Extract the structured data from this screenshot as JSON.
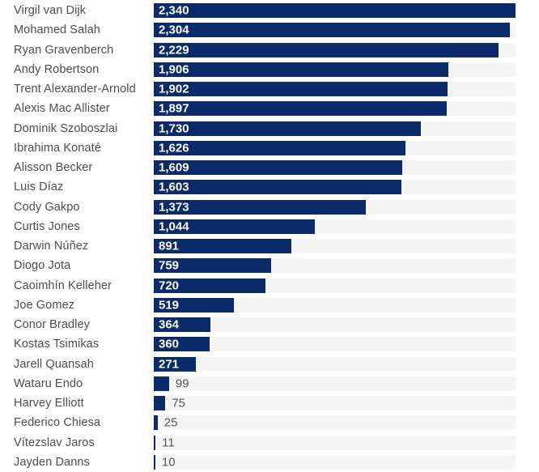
{
  "colors": {
    "background": "#ffffff",
    "bar": "#0a2a6a",
    "track": "#f5f5f6",
    "name_text": "#4a4e52",
    "value_inside_text": "#ffffff",
    "value_outside_text": "#54575b"
  },
  "chart_data": {
    "type": "bar",
    "orientation": "horizontal",
    "categories": [
      "Virgil van Dijk",
      "Mohamed Salah",
      "Ryan Gravenberch",
      "Andy Robertson",
      "Trent Alexander-Arnold",
      "Alexis Mac Allister",
      "Dominik Szoboszlai",
      "Ibrahima Konaté",
      "Alisson Becker",
      "Luis Díaz",
      "Cody Gakpo",
      "Curtis Jones",
      "Darwin Núñez",
      "Diogo Jota",
      "Caoimhín Kelleher",
      "Joe Gomez",
      "Conor Bradley",
      "Kostas Tsimikas",
      "Jarell Quansah",
      "Wataru Endo",
      "Harvey Elliott",
      "Federico Chiesa",
      "Vítezslav Jaros",
      "Jayden Danns"
    ],
    "values": [
      2340,
      2304,
      2229,
      1906,
      1902,
      1897,
      1730,
      1626,
      1609,
      1603,
      1373,
      1044,
      891,
      759,
      720,
      519,
      364,
      360,
      271,
      99,
      75,
      25,
      11,
      10
    ],
    "value_labels": [
      "2,340",
      "2,304",
      "2,229",
      "1,906",
      "1,902",
      "1,897",
      "1,730",
      "1,626",
      "1,609",
      "1,603",
      "1,373",
      "1,044",
      "891",
      "759",
      "720",
      "519",
      "364",
      "360",
      "271",
      "99",
      "75",
      "25",
      "11",
      "10"
    ],
    "xlim": [
      0,
      2340
    ],
    "value_label_placement": "inside-left for wide bars, outside-right for narrow bars",
    "axes_visible": false,
    "grid": false,
    "legend": "none"
  }
}
